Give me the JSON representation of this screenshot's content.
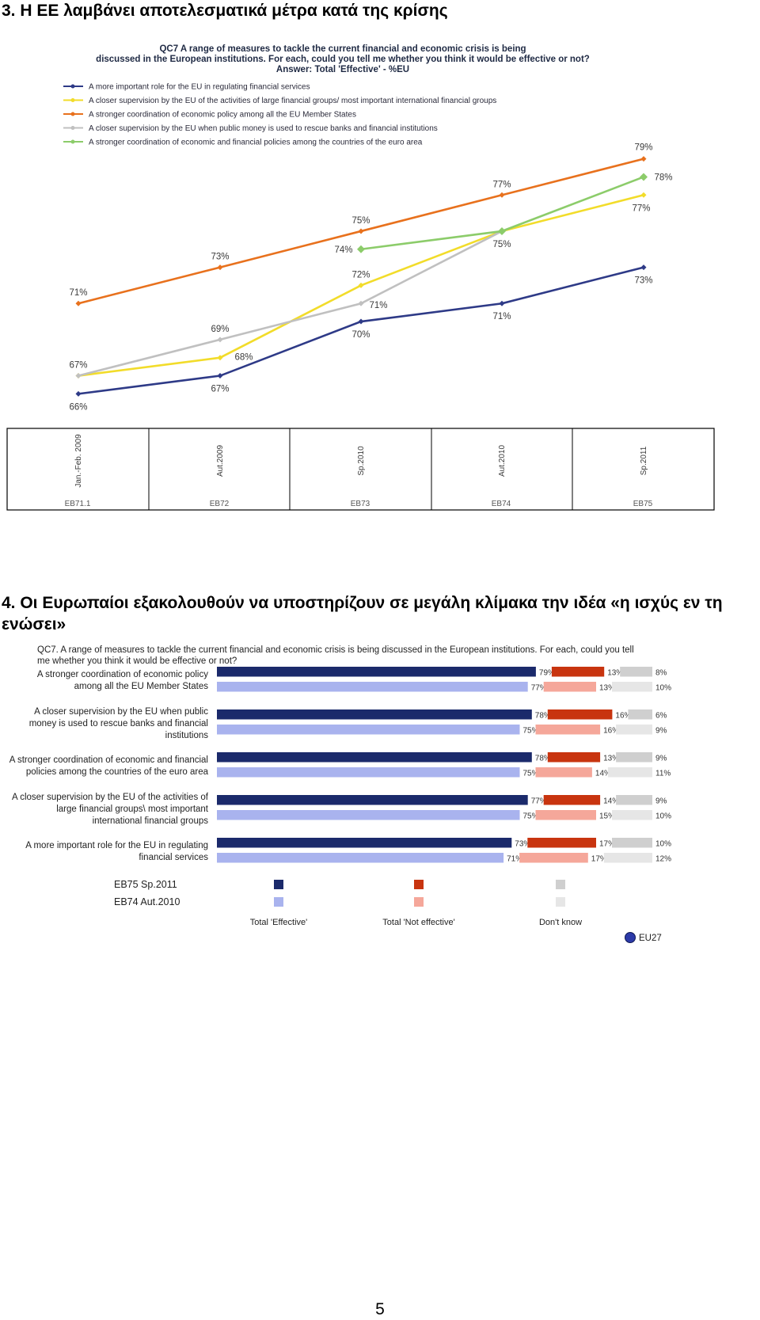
{
  "section1": {
    "heading": "3. Η ΕΕ λαμβάνει αποτελεσματικά μέτρα κατά της κρίσης"
  },
  "section2": {
    "heading": "4. Οι Ευρωπαίοι εξακολουθούν να υποστηρίζουν σε μεγάλη κλίμακα την ιδέα «η ισχύς εν τη ενώσει»"
  },
  "page_number": "5",
  "chart_data": [
    {
      "type": "line",
      "title": "QC7 A range of measures to tackle the current financial and economic crisis is being discussed in the European institutions. For each, could you tell me whether you think it would be effective or not?",
      "subtitle": "Answer: Total 'Effective' - %EU",
      "categories": [
        "Jan.-Feb. 2009",
        "Aut.2009",
        "Sp.2010",
        "Aut.2010",
        "Sp.2011"
      ],
      "waves": [
        "EB71.1",
        "EB72",
        "EB73",
        "EB74",
        "EB75"
      ],
      "ylim": [
        64,
        81
      ],
      "series": [
        {
          "name": "A more important role for the EU in regulating financial services",
          "color": "#2e3a87",
          "values": [
            66,
            67,
            70,
            71,
            73
          ]
        },
        {
          "name": "A closer supervision by the EU of the activities of large financial groups/ most important international financial groups",
          "color": "#f2dc2a",
          "values": [
            67,
            68,
            72,
            75,
            77
          ]
        },
        {
          "name": "A stronger coordination of economic policy among all the EU Member States",
          "color": "#e8711d",
          "values": [
            71,
            73,
            75,
            77,
            79
          ]
        },
        {
          "name": "A closer supervision by the EU when public money is used to rescue banks and financial institutions",
          "color": "#c0c0c0",
          "values": [
            67,
            69,
            71,
            75,
            null
          ]
        },
        {
          "name": "A stronger coordination of economic and financial policies among the countries of the euro area",
          "color": "#8ccc6a",
          "values": [
            null,
            null,
            74,
            75,
            78
          ]
        }
      ],
      "labels": [
        [
          "66%",
          "67%",
          "70%",
          "71%",
          "73%"
        ],
        [
          "",
          "68%",
          "72%",
          "",
          "77%"
        ],
        [
          "71%",
          "73%",
          "75%",
          "77%",
          "79%"
        ],
        [
          "67%",
          "69%",
          "71%",
          "75%",
          ""
        ],
        [
          "",
          "",
          "74%",
          "",
          "78%"
        ]
      ]
    },
    {
      "type": "bar",
      "title": "QC7. A range of measures to tackle the current financial and economic crisis is being discussed in the European institutions. For each, could you tell me whether you think it would be effective or not?",
      "categories": [
        [
          "A stronger coordination of economic policy",
          "among all the EU Member States"
        ],
        [
          "A closer supervision by the EU when public",
          "money is used to rescue banks and financial",
          "institutions"
        ],
        [
          "A stronger coordination of economic and financial",
          "policies among the countries of the euro area"
        ],
        [
          "A closer supervision by the EU of the activities of",
          "large financial groups\\ most important",
          "international financial groups"
        ],
        [
          "A more important role for the EU in regulating",
          "financial services"
        ]
      ],
      "series": [
        {
          "name": "EB75 Sp.2011",
          "effective": [
            79,
            78,
            78,
            77,
            73
          ],
          "not_effective": [
            13,
            16,
            13,
            14,
            17
          ],
          "dont_know": [
            8,
            6,
            9,
            9,
            10
          ]
        },
        {
          "name": "EB74 Aut.2010",
          "effective": [
            77,
            75,
            75,
            75,
            71
          ],
          "not_effective": [
            13,
            16,
            14,
            15,
            17
          ],
          "dont_know": [
            10,
            9,
            11,
            10,
            12
          ]
        }
      ],
      "colors": {
        "effective": [
          "#1b2a6b",
          "#a9b3ee"
        ],
        "not_effective": [
          "#c8340f",
          "#f5a79a"
        ],
        "dont_know": [
          "#cfcfcf",
          "#e6e6e6"
        ]
      },
      "legend": {
        "waves": [
          "EB75 Sp.2011",
          "EB74 Aut.2010"
        ],
        "answers": [
          "Total 'Effective'",
          "Total 'Not effective'",
          "Don't know"
        ],
        "badge": "EU27"
      }
    }
  ]
}
